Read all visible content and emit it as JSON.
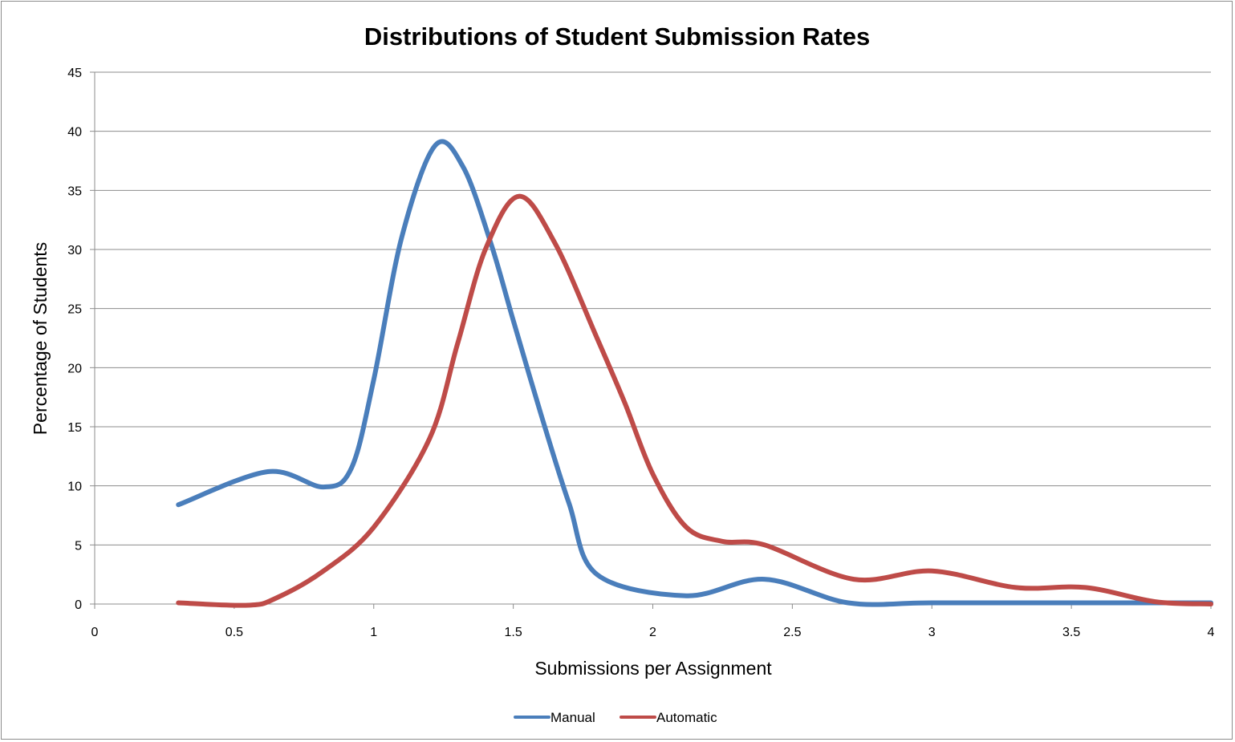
{
  "chart_data": {
    "type": "line",
    "title": "Distributions of Student Submission Rates",
    "xlabel": "Submissions per Assignment",
    "ylabel": "Percentage of Students",
    "xlim": [
      0,
      4
    ],
    "ylim": [
      0,
      45
    ],
    "x_ticks": [
      "0",
      "0.5",
      "1",
      "1.5",
      "2",
      "2.5",
      "3",
      "3.5",
      "4"
    ],
    "y_ticks": [
      "0",
      "5",
      "10",
      "15",
      "20",
      "25",
      "30",
      "35",
      "40",
      "45"
    ],
    "grid": true,
    "smooth": true,
    "legend_position": "bottom",
    "series": [
      {
        "name": "Manual",
        "color": "#4a7ebb",
        "points": [
          [
            0.3,
            8.4
          ],
          [
            0.62,
            11.2
          ],
          [
            0.82,
            9.9
          ],
          [
            0.92,
            11.5
          ],
          [
            1.0,
            19.0
          ],
          [
            1.1,
            31.0
          ],
          [
            1.22,
            38.8
          ],
          [
            1.32,
            37.0
          ],
          [
            1.42,
            30.5
          ],
          [
            1.5,
            24.0
          ],
          [
            1.6,
            16.0
          ],
          [
            1.7,
            8.5
          ],
          [
            1.8,
            2.5
          ],
          [
            2.12,
            0.7
          ],
          [
            2.4,
            2.1
          ],
          [
            2.7,
            0.1
          ],
          [
            3.0,
            0.1
          ],
          [
            3.5,
            0.1
          ],
          [
            4.0,
            0.1
          ]
        ]
      },
      {
        "name": "Automatic",
        "color": "#be4b48",
        "points": [
          [
            0.3,
            0.1
          ],
          [
            0.55,
            -0.1
          ],
          [
            0.65,
            0.5
          ],
          [
            0.82,
            2.8
          ],
          [
            1.0,
            6.5
          ],
          [
            1.2,
            14.0
          ],
          [
            1.3,
            22.0
          ],
          [
            1.4,
            30.0
          ],
          [
            1.52,
            34.5
          ],
          [
            1.65,
            30.5
          ],
          [
            1.8,
            22.5
          ],
          [
            1.9,
            17.0
          ],
          [
            2.0,
            11.0
          ],
          [
            2.12,
            6.5
          ],
          [
            2.25,
            5.3
          ],
          [
            2.4,
            5.0
          ],
          [
            2.72,
            2.1
          ],
          [
            3.0,
            2.8
          ],
          [
            3.3,
            1.4
          ],
          [
            3.55,
            1.4
          ],
          [
            3.8,
            0.2
          ],
          [
            4.0,
            0.0
          ]
        ]
      }
    ]
  }
}
